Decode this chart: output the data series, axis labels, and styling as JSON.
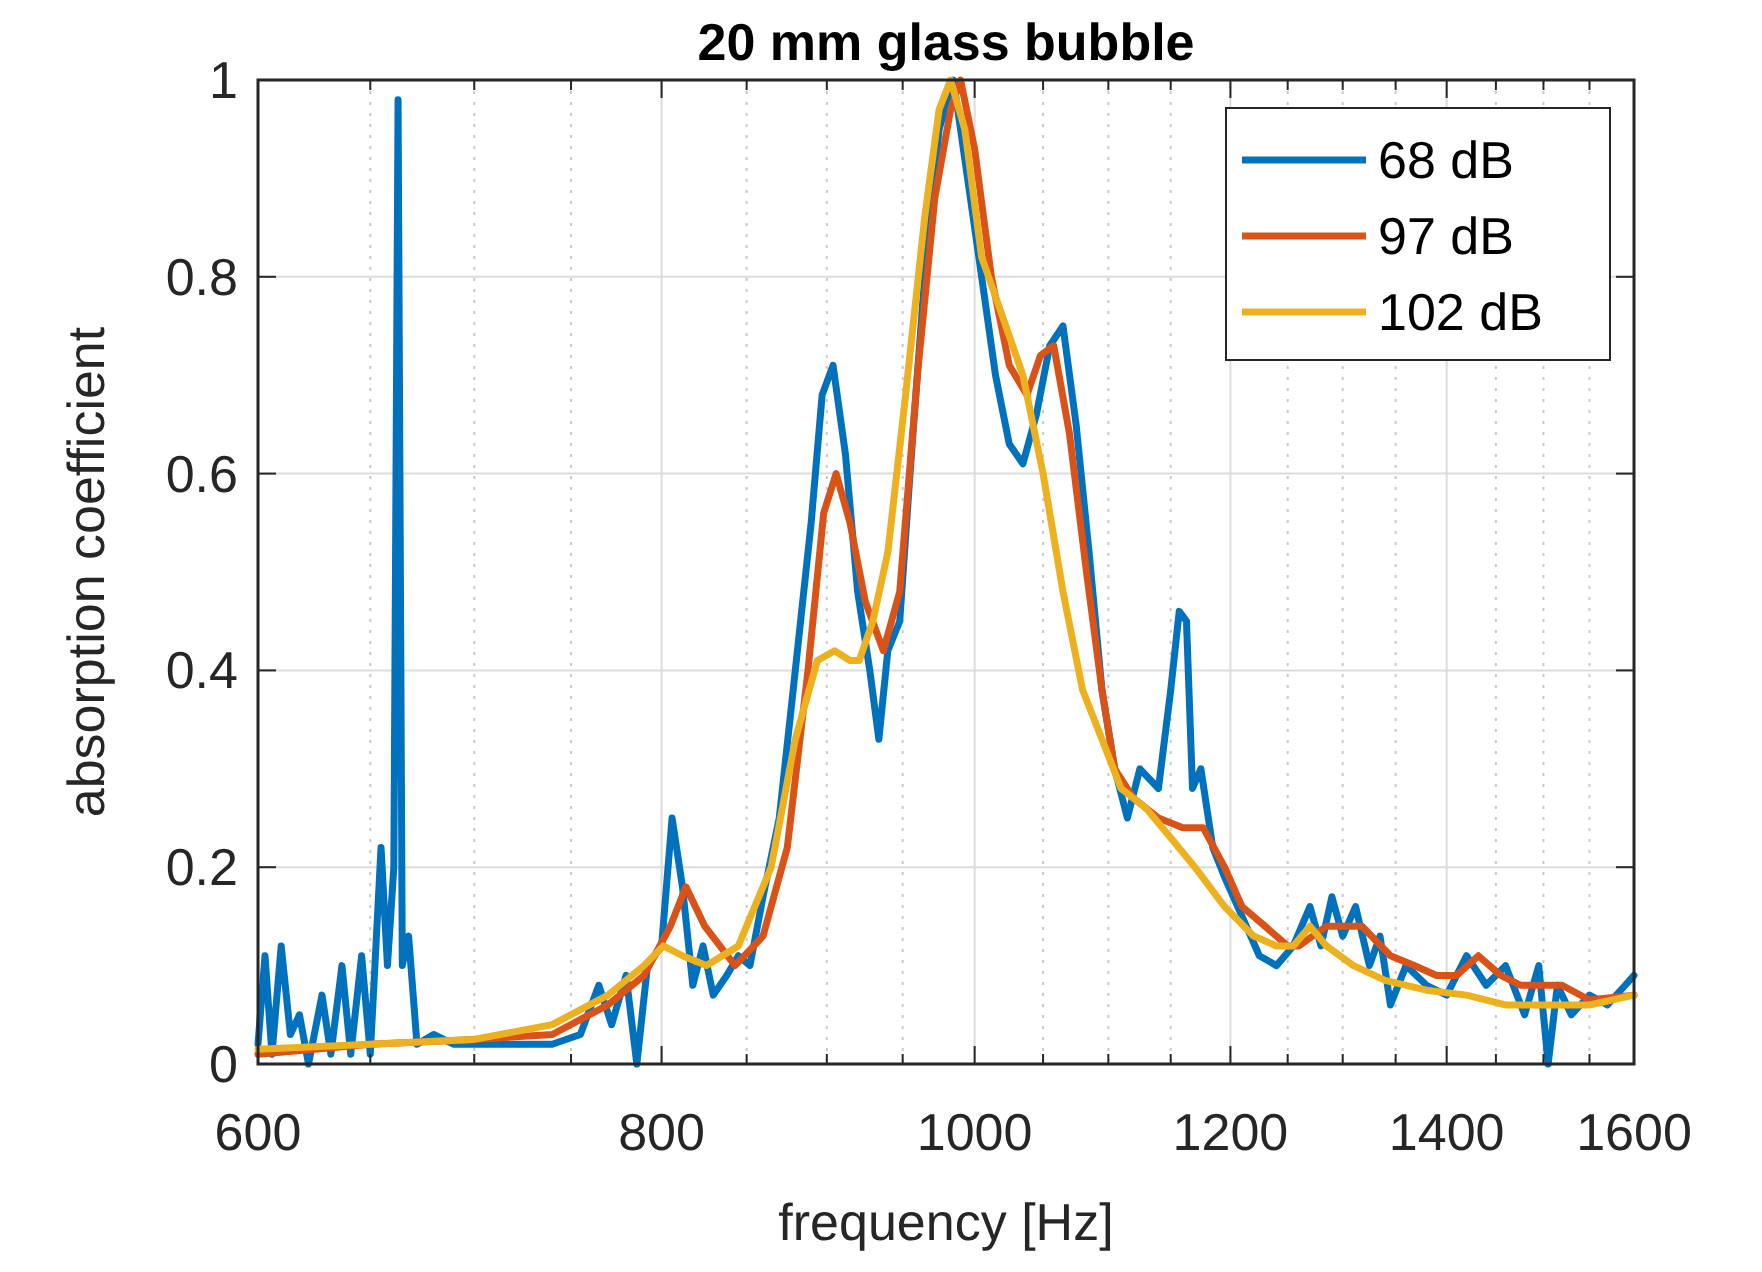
{
  "chart_data": {
    "type": "line",
    "title": "20 mm glass bubble",
    "xlabel": "frequency [Hz]",
    "ylabel": "absorption coefficient",
    "log": "x",
    "grid": true,
    "legend": "top right",
    "line_style": "solid",
    "xlim": [
      600,
      1600
    ],
    "ylim": [
      0,
      1
    ],
    "xticks": [
      600,
      {
        "value": 650,
        "label": null
      },
      {
        "value": 700,
        "label": null
      },
      {
        "value": 750,
        "label": null
      },
      800,
      {
        "value": 850,
        "label": null
      },
      {
        "value": 900,
        "label": null
      },
      {
        "value": 950,
        "label": null
      },
      1000,
      {
        "value": 1050,
        "label": null
      },
      {
        "value": 1100,
        "label": null
      },
      {
        "value": 1150,
        "label": null
      },
      1200,
      {
        "value": 1250,
        "label": null
      },
      {
        "value": 1300,
        "label": null
      },
      {
        "value": 1350,
        "label": null
      },
      1400,
      {
        "value": 1450,
        "label": null
      },
      {
        "value": 1500,
        "label": null
      },
      {
        "value": 1550,
        "label": null
      },
      1600
    ],
    "yticks": [
      0,
      0.2,
      0.4,
      0.6,
      0.8,
      1
    ],
    "series": [
      {
        "name": "68 dB",
        "color": "#0072bd",
        "x": [
          600,
          603,
          606,
          610,
          614,
          618,
          622,
          628,
          632,
          637,
          641,
          646,
          650,
          655,
          658,
          661,
          663,
          665,
          668,
          672,
          680,
          690,
          700,
          720,
          740,
          755,
          765,
          772,
          780,
          786,
          792,
          800,
          806,
          812,
          818,
          824,
          830,
          838,
          845,
          852,
          860,
          870,
          880,
          890,
          897,
          904,
          912,
          920,
          928,
          934,
          940,
          948,
          955,
          965,
          975,
          985,
          995,
          1005,
          1015,
          1025,
          1035,
          1045,
          1055,
          1065,
          1075,
          1085,
          1095,
          1105,
          1115,
          1125,
          1140,
          1150,
          1157,
          1163,
          1168,
          1175,
          1185,
          1195,
          1210,
          1225,
          1240,
          1255,
          1270,
          1280,
          1290,
          1300,
          1312,
          1325,
          1335,
          1345,
          1360,
          1380,
          1400,
          1420,
          1440,
          1460,
          1480,
          1495,
          1505,
          1515,
          1530,
          1550,
          1570,
          1590,
          1600
        ],
        "values": [
          0.02,
          0.11,
          0.01,
          0.12,
          0.03,
          0.05,
          0.0,
          0.07,
          0.01,
          0.1,
          0.01,
          0.11,
          0.01,
          0.22,
          0.1,
          0.2,
          0.98,
          0.1,
          0.13,
          0.02,
          0.03,
          0.02,
          0.02,
          0.02,
          0.02,
          0.03,
          0.08,
          0.04,
          0.09,
          0.0,
          0.1,
          0.12,
          0.25,
          0.18,
          0.08,
          0.12,
          0.07,
          0.09,
          0.11,
          0.1,
          0.17,
          0.25,
          0.4,
          0.55,
          0.68,
          0.71,
          0.62,
          0.48,
          0.4,
          0.33,
          0.42,
          0.45,
          0.6,
          0.8,
          0.95,
          1.0,
          0.9,
          0.8,
          0.7,
          0.63,
          0.61,
          0.66,
          0.73,
          0.75,
          0.65,
          0.52,
          0.38,
          0.3,
          0.25,
          0.3,
          0.28,
          0.38,
          0.46,
          0.45,
          0.28,
          0.3,
          0.22,
          0.19,
          0.15,
          0.11,
          0.1,
          0.12,
          0.16,
          0.12,
          0.17,
          0.13,
          0.16,
          0.1,
          0.13,
          0.06,
          0.1,
          0.08,
          0.07,
          0.11,
          0.08,
          0.1,
          0.05,
          0.1,
          0.0,
          0.08,
          0.05,
          0.07,
          0.06,
          0.08,
          0.09
        ]
      },
      {
        "name": "97 dB",
        "color": "#d95319",
        "x": [
          600,
          650,
          700,
          740,
          770,
          790,
          805,
          814,
          825,
          843,
          860,
          875,
          888,
          898,
          906,
          915,
          925,
          937,
          948,
          960,
          972,
          983,
          990,
          1000,
          1012,
          1025,
          1038,
          1048,
          1058,
          1070,
          1083,
          1095,
          1105,
          1120,
          1140,
          1160,
          1177,
          1195,
          1210,
          1230,
          1250,
          1260,
          1285,
          1318,
          1345,
          1368,
          1390,
          1410,
          1432,
          1455,
          1476,
          1500,
          1520,
          1550,
          1600
        ],
        "values": [
          0.01,
          0.02,
          0.025,
          0.03,
          0.06,
          0.09,
          0.14,
          0.18,
          0.14,
          0.1,
          0.13,
          0.22,
          0.4,
          0.56,
          0.6,
          0.55,
          0.47,
          0.42,
          0.48,
          0.7,
          0.88,
          0.97,
          1.0,
          0.93,
          0.8,
          0.71,
          0.68,
          0.72,
          0.73,
          0.64,
          0.5,
          0.38,
          0.3,
          0.27,
          0.25,
          0.24,
          0.24,
          0.2,
          0.16,
          0.14,
          0.12,
          0.12,
          0.14,
          0.14,
          0.11,
          0.1,
          0.09,
          0.09,
          0.11,
          0.09,
          0.08,
          0.08,
          0.08,
          0.065,
          0.07
        ]
      },
      {
        "name": "102 dB",
        "color": "#edb120",
        "x": [
          600,
          650,
          700,
          740,
          770,
          790,
          801,
          812,
          826,
          845,
          865,
          880,
          894,
          905,
          915,
          921,
          930,
          940,
          952,
          965,
          975,
          983,
          993,
          1005,
          1020,
          1035,
          1050,
          1065,
          1080,
          1095,
          1110,
          1130,
          1150,
          1170,
          1195,
          1220,
          1240,
          1255,
          1270,
          1285,
          1310,
          1340,
          1380,
          1420,
          1460,
          1500,
          1550,
          1600
        ],
        "values": [
          0.015,
          0.02,
          0.025,
          0.04,
          0.07,
          0.1,
          0.12,
          0.11,
          0.1,
          0.12,
          0.2,
          0.33,
          0.41,
          0.42,
          0.41,
          0.41,
          0.45,
          0.52,
          0.68,
          0.86,
          0.97,
          1.0,
          0.95,
          0.82,
          0.76,
          0.7,
          0.6,
          0.48,
          0.38,
          0.33,
          0.28,
          0.26,
          0.23,
          0.2,
          0.16,
          0.13,
          0.12,
          0.12,
          0.14,
          0.12,
          0.1,
          0.085,
          0.075,
          0.07,
          0.06,
          0.06,
          0.06,
          0.07
        ]
      }
    ]
  }
}
